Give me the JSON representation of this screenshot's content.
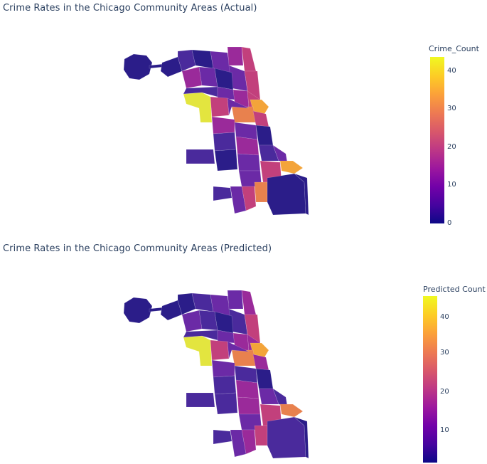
{
  "maps": [
    {
      "title": "Crime Rates in the Chicago Community Areas (Actual)",
      "colorbar": {
        "title": "Crime_Count",
        "ticks": [
          "40",
          "30",
          "20",
          "10",
          "0"
        ],
        "range": [
          0,
          44
        ]
      }
    },
    {
      "title": "Crime Rates in the Chicago Community Areas (Predicted)",
      "colorbar": {
        "title": "Predicted Count",
        "ticks": [
          "40",
          "30",
          "20",
          "10"
        ],
        "range": [
          2,
          45
        ]
      }
    }
  ],
  "colors": {
    "dark": "#2b1d89",
    "purple": "#4a2a9c",
    "violet": "#6b2aa6",
    "magenta": "#9a2a9a",
    "pink": "#c2407c",
    "orange": "#e8814e",
    "amber": "#f3a43a",
    "yellow": "#e3e53f"
  }
}
